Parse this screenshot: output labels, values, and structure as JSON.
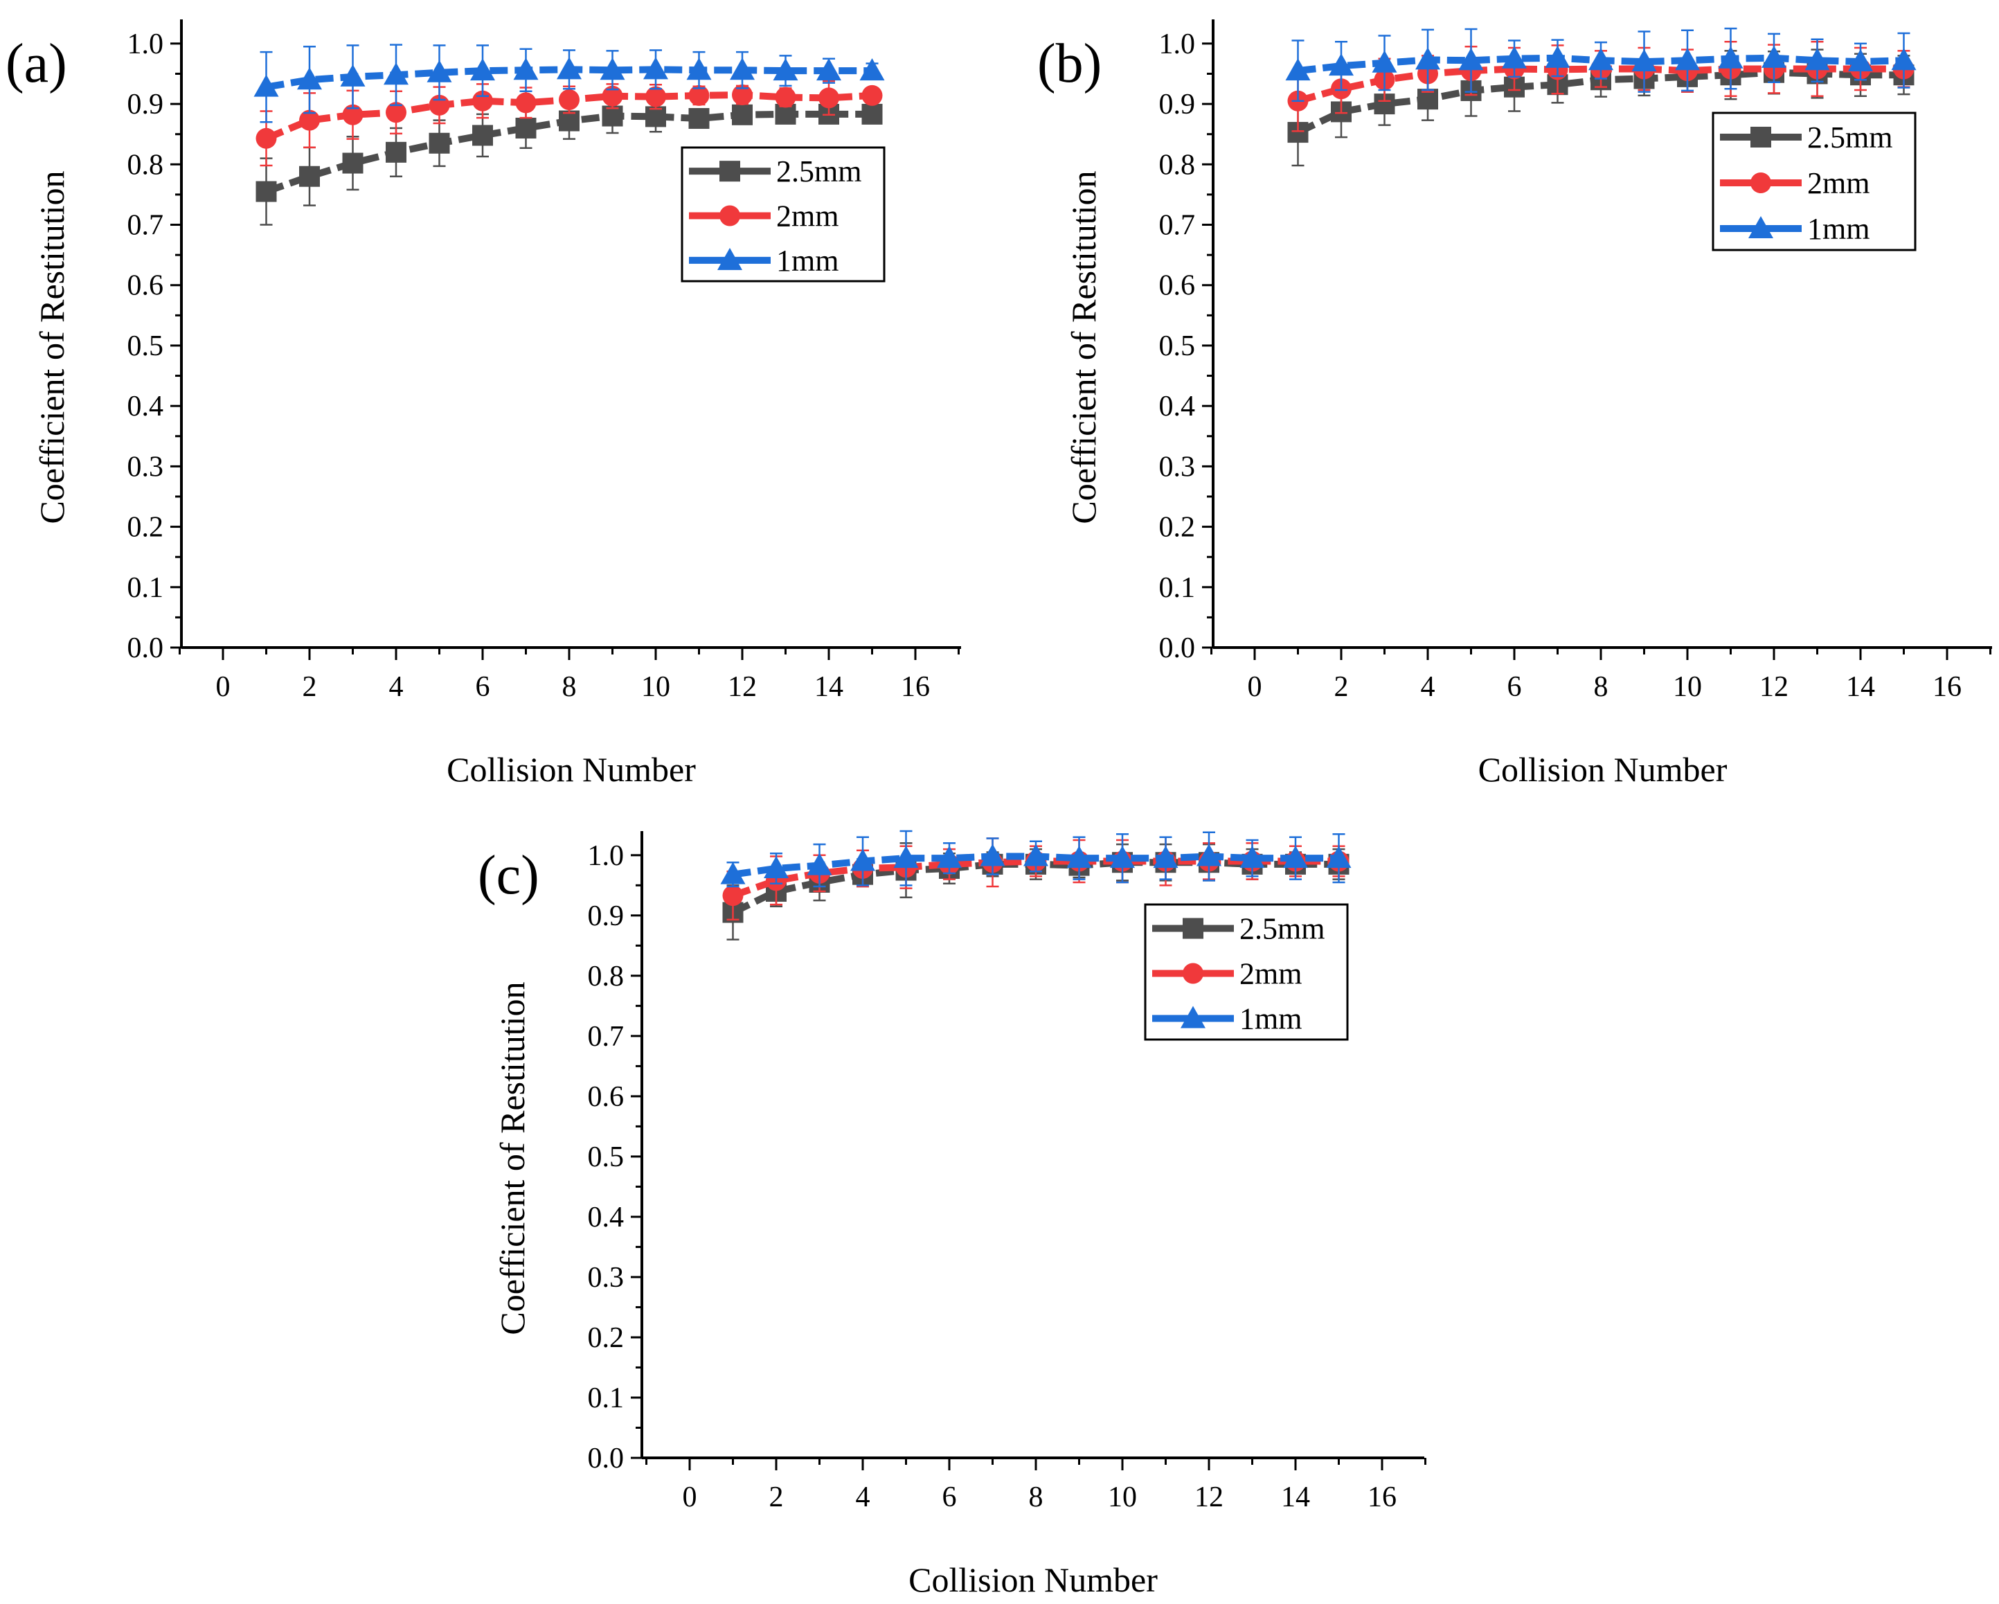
{
  "colors": {
    "axis": "#000000",
    "series": [
      "#4d4d4d",
      "#f0393b",
      "#1e6fd9"
    ]
  },
  "chart_data": [
    {
      "type": "line",
      "panel_label": "(a)",
      "xlabel": "Collision Number",
      "ylabel": "Coefficient of Restitution",
      "xlim": [
        -1,
        17
      ],
      "ylim": [
        0.0,
        1.04
      ],
      "xticks": [
        "0",
        "2",
        "4",
        "6",
        "8",
        "10",
        "12",
        "14",
        "16"
      ],
      "yticks": [
        "0.0",
        "0.1",
        "0.2",
        "0.3",
        "0.4",
        "0.5",
        "0.6",
        "0.7",
        "0.8",
        "0.9",
        "1.0"
      ],
      "legend_position": "upper-right",
      "x": [
        1,
        2,
        3,
        4,
        5,
        6,
        7,
        8,
        9,
        10,
        11,
        12,
        13,
        14,
        15
      ],
      "series": [
        {
          "name": "2.5mm",
          "marker": "square",
          "values": [
            0.755,
            0.78,
            0.802,
            0.82,
            0.835,
            0.848,
            0.86,
            0.872,
            0.88,
            0.879,
            0.876,
            0.882,
            0.883,
            0.883,
            0.883
          ],
          "errors": [
            0.055,
            0.048,
            0.044,
            0.04,
            0.038,
            0.035,
            0.033,
            0.03,
            0.028,
            0.025,
            0.015,
            0.015,
            0.012,
            0.012,
            0.01
          ]
        },
        {
          "name": "2mm",
          "marker": "circle",
          "values": [
            0.843,
            0.873,
            0.882,
            0.886,
            0.898,
            0.905,
            0.902,
            0.907,
            0.913,
            0.912,
            0.914,
            0.915,
            0.911,
            0.91,
            0.914
          ],
          "errors": [
            0.045,
            0.045,
            0.04,
            0.035,
            0.03,
            0.028,
            0.025,
            0.022,
            0.02,
            0.02,
            0.015,
            0.015,
            0.015,
            0.028,
            0.01
          ]
        },
        {
          "name": "1mm",
          "marker": "triangle",
          "values": [
            0.928,
            0.94,
            0.945,
            0.948,
            0.952,
            0.955,
            0.956,
            0.957,
            0.956,
            0.957,
            0.956,
            0.956,
            0.955,
            0.955,
            0.955
          ],
          "errors": [
            0.058,
            0.055,
            0.052,
            0.05,
            0.045,
            0.042,
            0.035,
            0.032,
            0.032,
            0.032,
            0.03,
            0.03,
            0.025,
            0.02,
            0.012
          ]
        }
      ]
    },
    {
      "type": "line",
      "panel_label": "(b)",
      "xlabel": "Collision Number",
      "ylabel": "Coefficient of Restitution",
      "xlim": [
        -1,
        17
      ],
      "ylim": [
        0.0,
        1.04
      ],
      "xticks": [
        "0",
        "2",
        "4",
        "6",
        "8",
        "10",
        "12",
        "14",
        "16"
      ],
      "yticks": [
        "0.0",
        "0.1",
        "0.2",
        "0.3",
        "0.4",
        "0.5",
        "0.6",
        "0.7",
        "0.8",
        "0.9",
        "1.0"
      ],
      "legend_position": "upper-right",
      "x": [
        1,
        2,
        3,
        4,
        5,
        6,
        7,
        8,
        9,
        10,
        11,
        12,
        13,
        14,
        15
      ],
      "series": [
        {
          "name": "2.5mm",
          "marker": "square",
          "values": [
            0.853,
            0.887,
            0.9,
            0.908,
            0.922,
            0.928,
            0.932,
            0.94,
            0.942,
            0.945,
            0.948,
            0.952,
            0.95,
            0.948,
            0.948
          ],
          "errors": [
            0.055,
            0.042,
            0.035,
            0.035,
            0.042,
            0.04,
            0.03,
            0.028,
            0.028,
            0.025,
            0.04,
            0.035,
            0.04,
            0.035,
            0.032
          ]
        },
        {
          "name": "2mm",
          "marker": "circle",
          "values": [
            0.905,
            0.925,
            0.94,
            0.95,
            0.955,
            0.958,
            0.957,
            0.958,
            0.958,
            0.955,
            0.958,
            0.958,
            0.958,
            0.958,
            0.958
          ],
          "errors": [
            0.05,
            0.04,
            0.035,
            0.03,
            0.04,
            0.035,
            0.04,
            0.03,
            0.035,
            0.035,
            0.045,
            0.04,
            0.045,
            0.035,
            0.03
          ]
        },
        {
          "name": "1mm",
          "marker": "triangle",
          "values": [
            0.955,
            0.963,
            0.968,
            0.973,
            0.972,
            0.975,
            0.976,
            0.972,
            0.97,
            0.972,
            0.975,
            0.976,
            0.972,
            0.97,
            0.972
          ],
          "errors": [
            0.05,
            0.04,
            0.045,
            0.05,
            0.052,
            0.03,
            0.03,
            0.03,
            0.05,
            0.05,
            0.05,
            0.04,
            0.035,
            0.03,
            0.045
          ]
        }
      ]
    },
    {
      "type": "line",
      "panel_label": "(c)",
      "xlabel": "Collision Number",
      "ylabel": "Coefficient of Restitution",
      "xlim": [
        -1,
        17
      ],
      "ylim": [
        0.0,
        1.04
      ],
      "xticks": [
        "0",
        "2",
        "4",
        "6",
        "8",
        "10",
        "12",
        "14",
        "16"
      ],
      "yticks": [
        "0.0",
        "0.1",
        "0.2",
        "0.3",
        "0.4",
        "0.5",
        "0.6",
        "0.7",
        "0.8",
        "0.9",
        "1.0"
      ],
      "legend_position": "upper-right",
      "x": [
        1,
        2,
        3,
        4,
        5,
        6,
        7,
        8,
        9,
        10,
        11,
        12,
        13,
        14,
        15
      ],
      "series": [
        {
          "name": "2.5mm",
          "marker": "square",
          "values": [
            0.905,
            0.94,
            0.955,
            0.968,
            0.975,
            0.978,
            0.985,
            0.985,
            0.983,
            0.988,
            0.988,
            0.988,
            0.985,
            0.985,
            0.985
          ],
          "errors": [
            0.045,
            0.025,
            0.03,
            0.02,
            0.045,
            0.025,
            0.02,
            0.025,
            0.02,
            0.03,
            0.03,
            0.03,
            0.025,
            0.02,
            0.025
          ]
        },
        {
          "name": "2mm",
          "marker": "circle",
          "values": [
            0.933,
            0.958,
            0.97,
            0.978,
            0.98,
            0.985,
            0.988,
            0.99,
            0.99,
            0.99,
            0.99,
            0.99,
            0.99,
            0.99,
            0.99
          ],
          "errors": [
            0.04,
            0.04,
            0.03,
            0.03,
            0.035,
            0.025,
            0.04,
            0.025,
            0.035,
            0.035,
            0.04,
            0.03,
            0.03,
            0.025,
            0.025
          ]
        },
        {
          "name": "1mm",
          "marker": "triangle",
          "values": [
            0.968,
            0.978,
            0.983,
            0.99,
            0.995,
            0.995,
            0.998,
            0.998,
            0.995,
            0.995,
            0.995,
            0.998,
            0.995,
            0.995,
            0.995
          ],
          "errors": [
            0.02,
            0.025,
            0.035,
            0.04,
            0.045,
            0.025,
            0.03,
            0.025,
            0.035,
            0.04,
            0.035,
            0.04,
            0.03,
            0.035,
            0.04
          ]
        }
      ]
    }
  ]
}
